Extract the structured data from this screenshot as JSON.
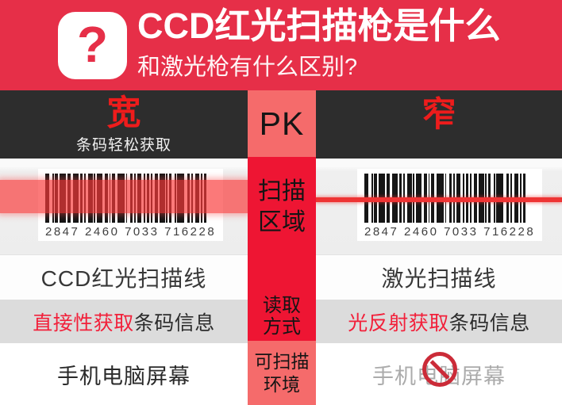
{
  "header": {
    "question_icon": "?",
    "title": "CCD红光扫描枪是什么",
    "subtitle": "和激光枪有什么区别?"
  },
  "versus": {
    "left_title": "宽",
    "left_subtitle": "条码轻松获取",
    "pk": "PK",
    "right_title": "窄"
  },
  "rows": {
    "scan_area": {
      "center_label": "扫描\n区域",
      "left_barcode_number": "2847 2460 7033 716228",
      "right_barcode_number": "2847 2460 7033 716228"
    },
    "scan_line": {
      "left": "CCD红光扫描线",
      "right": "激光扫描线"
    },
    "read_method": {
      "center_label": "读取\n方式",
      "left_highlight": "直接性获取",
      "left_rest": "条码信息",
      "right_highlight": "光反射获取",
      "right_rest": "条码信息"
    },
    "environment": {
      "center_label": "可扫描\n环境",
      "left": "手机电脑屏幕",
      "right": "手机电脑屏幕"
    }
  },
  "colors": {
    "header_red": "#e62f48",
    "band_dark": "#2d2d2d",
    "label_red": "#ee1c1c",
    "pk_salmon": "#f56b6b",
    "center_red": "#ee1533",
    "highlight_red": "#f2203a",
    "beam_red": "#f93939",
    "prohibition_red": "#cb2b38",
    "gray_row": "#dcdcdc",
    "disabled_gray": "#ababab"
  }
}
